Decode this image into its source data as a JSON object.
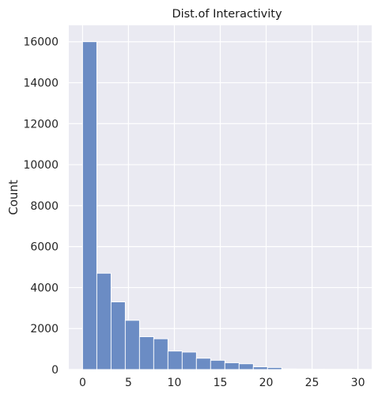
{
  "chart_data": {
    "type": "bar",
    "title": "Dist.of Interactivity",
    "xlabel": "",
    "ylabel": "Count",
    "xlim": [
      -1.5,
      31.5
    ],
    "ylim": [
      0,
      16800
    ],
    "x_ticks": [
      0,
      5,
      10,
      15,
      20,
      25,
      30
    ],
    "y_ticks": [
      0,
      2000,
      4000,
      6000,
      8000,
      10000,
      12000,
      14000,
      16000
    ],
    "grid": true,
    "bins": [
      {
        "x0": 0.0,
        "x1": 1.55,
        "count": 16000
      },
      {
        "x0": 1.55,
        "x1": 3.1,
        "count": 4700
      },
      {
        "x0": 3.1,
        "x1": 4.65,
        "count": 3300
      },
      {
        "x0": 4.65,
        "x1": 6.2,
        "count": 2400
      },
      {
        "x0": 6.2,
        "x1": 7.75,
        "count": 1600
      },
      {
        "x0": 7.75,
        "x1": 9.3,
        "count": 1500
      },
      {
        "x0": 9.3,
        "x1": 10.85,
        "count": 900
      },
      {
        "x0": 10.85,
        "x1": 12.4,
        "count": 850
      },
      {
        "x0": 12.4,
        "x1": 13.95,
        "count": 550
      },
      {
        "x0": 13.95,
        "x1": 15.5,
        "count": 450
      },
      {
        "x0": 15.5,
        "x1": 17.05,
        "count": 330
      },
      {
        "x0": 17.05,
        "x1": 18.6,
        "count": 280
      },
      {
        "x0": 18.6,
        "x1": 20.15,
        "count": 130
      },
      {
        "x0": 20.15,
        "x1": 21.7,
        "count": 100
      },
      {
        "x0": 21.7,
        "x1": 23.25,
        "count": 30
      },
      {
        "x0": 23.25,
        "x1": 24.8,
        "count": 25
      },
      {
        "x0": 24.8,
        "x1": 26.35,
        "count": 15
      },
      {
        "x0": 26.35,
        "x1": 27.9,
        "count": 12
      },
      {
        "x0": 27.9,
        "x1": 29.45,
        "count": 8
      },
      {
        "x0": 29.45,
        "x1": 31.0,
        "count": 5
      }
    ],
    "colors": {
      "plot_bg": "#eaeaf2",
      "grid": "#ffffff",
      "bar_fill": "#6b8cc4",
      "bar_edge": "#ffffff"
    }
  }
}
